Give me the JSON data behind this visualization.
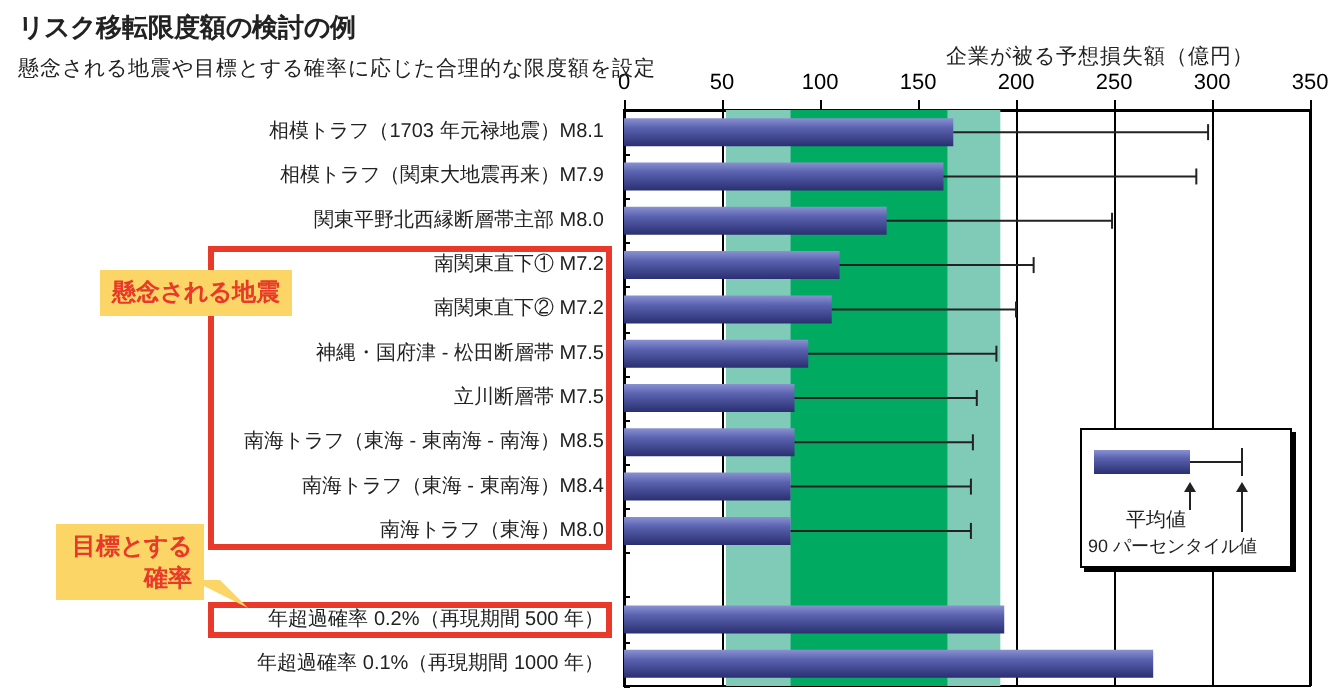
{
  "chart_data": {
    "type": "bar",
    "orientation": "horizontal",
    "title": "リスク移転限度額の検討の例",
    "subtitle": "懸念される地震や目標とする確率に応じた合理的な限度額を設定",
    "xlabel": "企業が被る予想損失額（億円）",
    "categories": [
      "相模トラフ（1703 年元禄地震）M8.1",
      "相模トラフ（関東大地震再来）M7.9",
      "関東平野北西縁断層帯主部 M8.0",
      "南関東直下① M7.2",
      "南関東直下② M7.2",
      "神縄・国府津 - 松田断層帯 M7.5",
      "立川断層帯 M7.5",
      "南海トラフ（東海 - 東南海 - 南海）M8.5",
      "南海トラフ（東海 - 東南海）M8.4",
      "南海トラフ（東海）M8.0",
      null,
      "年超過確率 0.2%（再現期間 500 年）",
      "年超過確率 0.1%（再現期間 1000 年）"
    ],
    "series": [
      {
        "color": "#5a62b0",
        "values": [
          168,
          163,
          134,
          110,
          106,
          94,
          87,
          87,
          85,
          85,
          null,
          194,
          270
        ],
        "errors": [
          [
            168,
            298
          ],
          [
            163,
            292
          ],
          [
            134,
            249
          ],
          [
            110,
            209
          ],
          [
            106,
            200
          ],
          [
            94,
            190
          ],
          [
            87,
            180
          ],
          [
            87,
            178
          ],
          [
            85,
            177
          ],
          [
            85,
            177
          ],
          null,
          null,
          null
        ]
      }
    ],
    "xlim": [
      0,
      350
    ],
    "xticks": [
      0,
      50,
      100,
      150,
      200,
      250,
      300,
      350
    ],
    "grid": "x",
    "bands": [
      {
        "axis": "x",
        "from": 52,
        "to": 192,
        "color": "#7fcbb8"
      },
      {
        "axis": "x",
        "from": 85,
        "to": 165,
        "color": "#00aa60"
      }
    ],
    "annotations": [
      "懸念される地震",
      "目標とする確率",
      "平均値",
      "90 パーセンタイル値"
    ]
  }
}
